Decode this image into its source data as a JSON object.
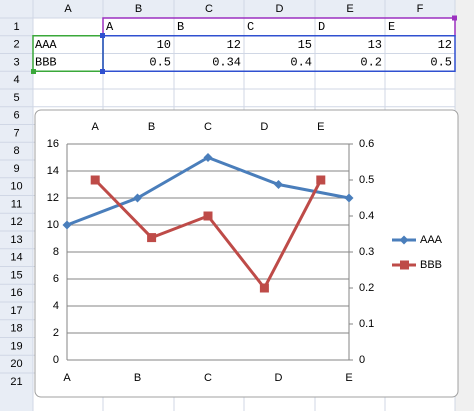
{
  "sheet": {
    "column_headers": [
      "A",
      "B",
      "C",
      "D",
      "E",
      "F"
    ],
    "row_headers": [
      1,
      2,
      3,
      4,
      5,
      6,
      7,
      8,
      9,
      10,
      11,
      12,
      13,
      14,
      15,
      16,
      17,
      18,
      19,
      20,
      21
    ],
    "header_row": [
      "A",
      "B",
      "C",
      "D",
      "E"
    ],
    "data_rows": [
      {
        "label": "AAA",
        "values": [
          10,
          12,
          15,
          13,
          12
        ]
      },
      {
        "label": "BBB",
        "values": [
          0.5,
          0.34,
          0.4,
          0.2,
          0.5
        ]
      }
    ]
  },
  "chart_data": {
    "type": "line",
    "categories": [
      "A",
      "B",
      "C",
      "D",
      "E"
    ],
    "series": [
      {
        "name": "AAA",
        "color": "#4a7ebb",
        "values": [
          10,
          12,
          15,
          13,
          12
        ]
      },
      {
        "name": "BBB",
        "color": "#be4b48",
        "values": [
          0.5,
          0.34,
          0.4,
          0.2,
          0.5
        ],
        "axis": "y2"
      }
    ],
    "ylim": [
      0,
      16
    ],
    "yticks": [
      0,
      2,
      4,
      6,
      8,
      10,
      12,
      14,
      16
    ],
    "y2lim": [
      0,
      0.6
    ],
    "y2ticks": [
      0,
      0.1,
      0.2,
      0.3,
      0.4,
      0.5,
      0.6
    ],
    "grid": true,
    "legend": "right"
  }
}
